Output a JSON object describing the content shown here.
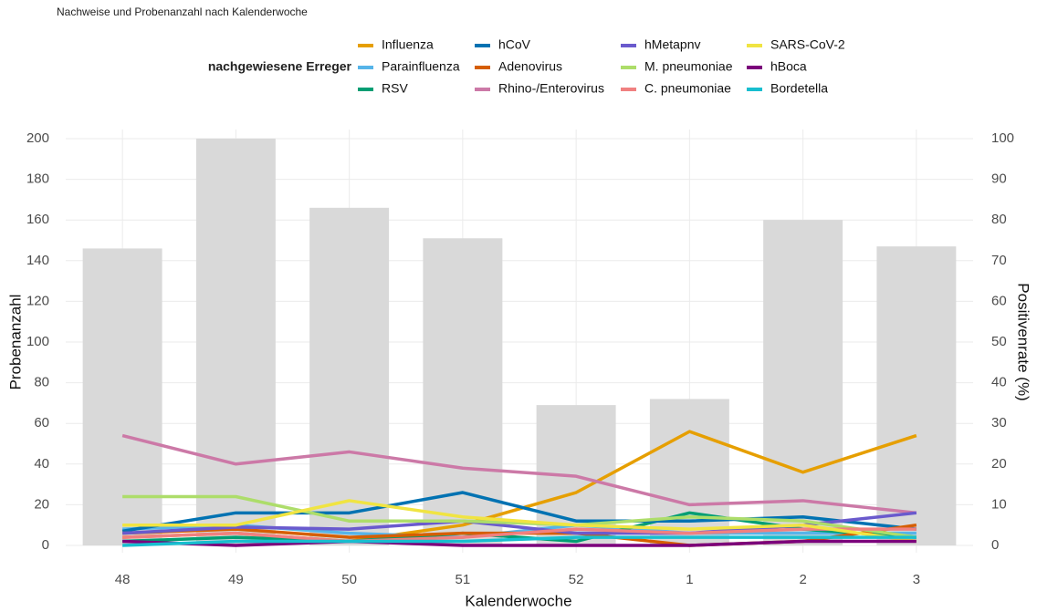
{
  "chart_data": {
    "type": "bar",
    "title": "Nachweise und Probenanzahl nach Kalenderwoche",
    "x_label": "Kalenderwoche",
    "y_label": "Probenanzahl",
    "y2_label": "Positivenrate (%)",
    "legend_title": "nachgewiesene Erreger",
    "categories": [
      "48",
      "49",
      "50",
      "51",
      "52",
      "1",
      "2",
      "3"
    ],
    "values": [
      146,
      200,
      166,
      151,
      69,
      72,
      160,
      147
    ],
    "color": "#d9d9d9",
    "ylim": [
      0,
      200
    ],
    "yticks": [
      0,
      20,
      40,
      60,
      80,
      100,
      120,
      140,
      160,
      180,
      200
    ],
    "y2lim": [
      0,
      100
    ],
    "y2ticks": [
      0,
      10,
      20,
      30,
      40,
      50,
      60,
      70,
      80,
      90,
      100
    ],
    "grid": true,
    "series": [
      {
        "name": "Influenza",
        "color": "#e69f00",
        "type": "line",
        "axis": "y2",
        "values": [
          2,
          3,
          1,
          5,
          13,
          28,
          18,
          27
        ]
      },
      {
        "name": "Parainfluenza",
        "color": "#56b4e9",
        "type": "line",
        "axis": "y2",
        "values": [
          4,
          5,
          3,
          2,
          5,
          3,
          3,
          3
        ]
      },
      {
        "name": "RSV",
        "color": "#009e73",
        "type": "line",
        "axis": "y2",
        "values": [
          1,
          2,
          1,
          3,
          1,
          8,
          4,
          2
        ]
      },
      {
        "name": "hCoV",
        "color": "#0072b2",
        "type": "line",
        "axis": "y2",
        "values": [
          3.5,
          8,
          8,
          13,
          6,
          6,
          7,
          4
        ]
      },
      {
        "name": "Adenovirus",
        "color": "#d55e00",
        "type": "line",
        "axis": "y2",
        "values": [
          3,
          4,
          2,
          3,
          3,
          0,
          1,
          5
        ]
      },
      {
        "name": "Rhino-/Enterovirus",
        "color": "#cc79a7",
        "type": "line",
        "axis": "y2",
        "values": [
          27,
          20,
          23,
          19,
          17,
          10,
          11,
          8
        ]
      },
      {
        "name": "hMetapnv",
        "color": "#6a5acd",
        "type": "line",
        "axis": "y2",
        "values": [
          3,
          4.5,
          4,
          6,
          3,
          3,
          5,
          8
        ]
      },
      {
        "name": "M. pneumoniae",
        "color": "#addd6a",
        "type": "line",
        "axis": "y2",
        "values": [
          12,
          12,
          6,
          6,
          5,
          7,
          6,
          2
        ]
      },
      {
        "name": "C. pneumoniae",
        "color": "#f08080",
        "type": "line",
        "axis": "y2",
        "values": [
          2,
          3,
          1,
          2,
          4,
          3,
          4,
          4
        ]
      },
      {
        "name": "SARS-CoV-2",
        "color": "#f0e442",
        "type": "line",
        "axis": "y2",
        "values": [
          5,
          5,
          11,
          7,
          5,
          4,
          5,
          1
        ]
      },
      {
        "name": "hBoca",
        "color": "#7b007b",
        "type": "line",
        "axis": "y2",
        "values": [
          1,
          0,
          1,
          0,
          0,
          0,
          1,
          1
        ]
      },
      {
        "name": "Bordetella",
        "color": "#17becf",
        "type": "line",
        "axis": "y2",
        "values": [
          0,
          1,
          1,
          1,
          2,
          2,
          2,
          2
        ]
      }
    ]
  }
}
